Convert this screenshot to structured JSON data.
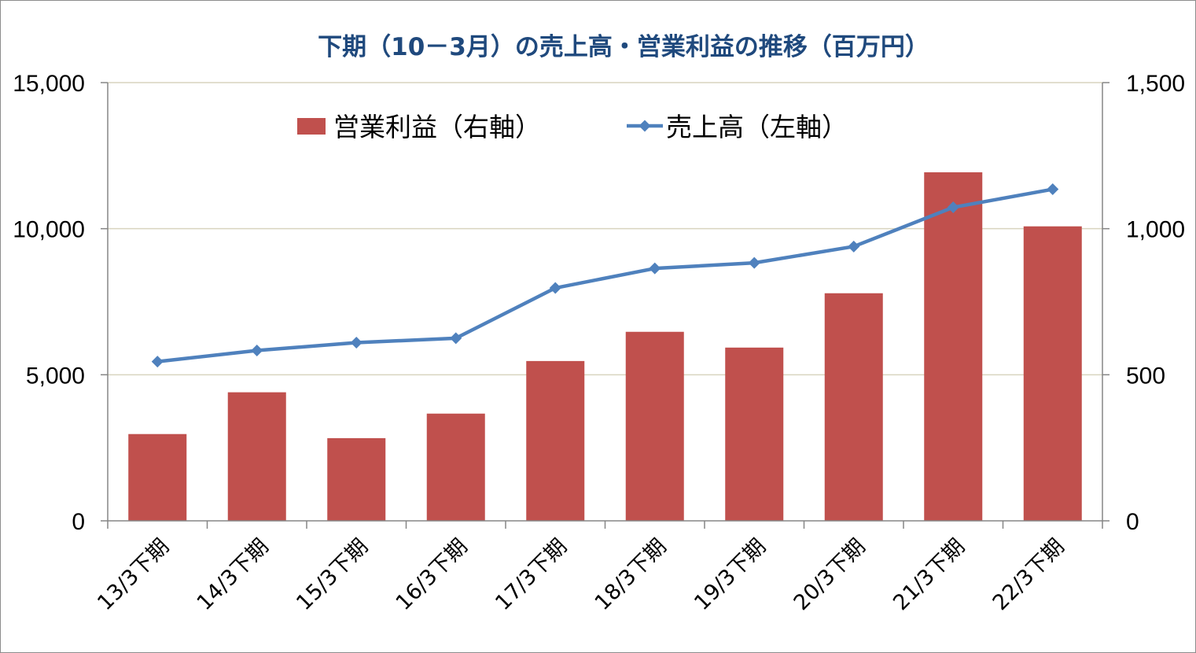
{
  "chart_data": {
    "type": "bar+line",
    "title": "下期（10－3月）の売上高・営業利益の推移（百万円）",
    "categories": [
      "13/3下期",
      "14/3下期",
      "15/3下期",
      "16/3下期",
      "17/3下期",
      "18/3下期",
      "19/3下期",
      "20/3下期",
      "21/3下期",
      "22/3下期"
    ],
    "series": [
      {
        "name": "営業利益（右軸）",
        "type": "bar",
        "axis": "right",
        "color": "#c0504d",
        "values": [
          297,
          440,
          283,
          367,
          547,
          647,
          593,
          779,
          1193,
          1008
        ]
      },
      {
        "name": "売上高（左軸）",
        "type": "line",
        "axis": "left",
        "color": "#4f81bd",
        "values": [
          5450,
          5830,
          6100,
          6250,
          7970,
          8640,
          8830,
          9390,
          10730,
          11350
        ]
      }
    ],
    "left_axis": {
      "range": [
        0,
        15000
      ],
      "ticks": [
        "0",
        "5,000",
        "10,000",
        "15,000"
      ],
      "tick_values": [
        0,
        5000,
        10000,
        15000
      ]
    },
    "right_axis": {
      "range": [
        0,
        1500
      ],
      "ticks": [
        "0",
        "500",
        "1,000",
        "1,500"
      ],
      "tick_values": [
        0,
        500,
        1000,
        1500
      ]
    },
    "gridlines": true,
    "legend_position": "top"
  }
}
